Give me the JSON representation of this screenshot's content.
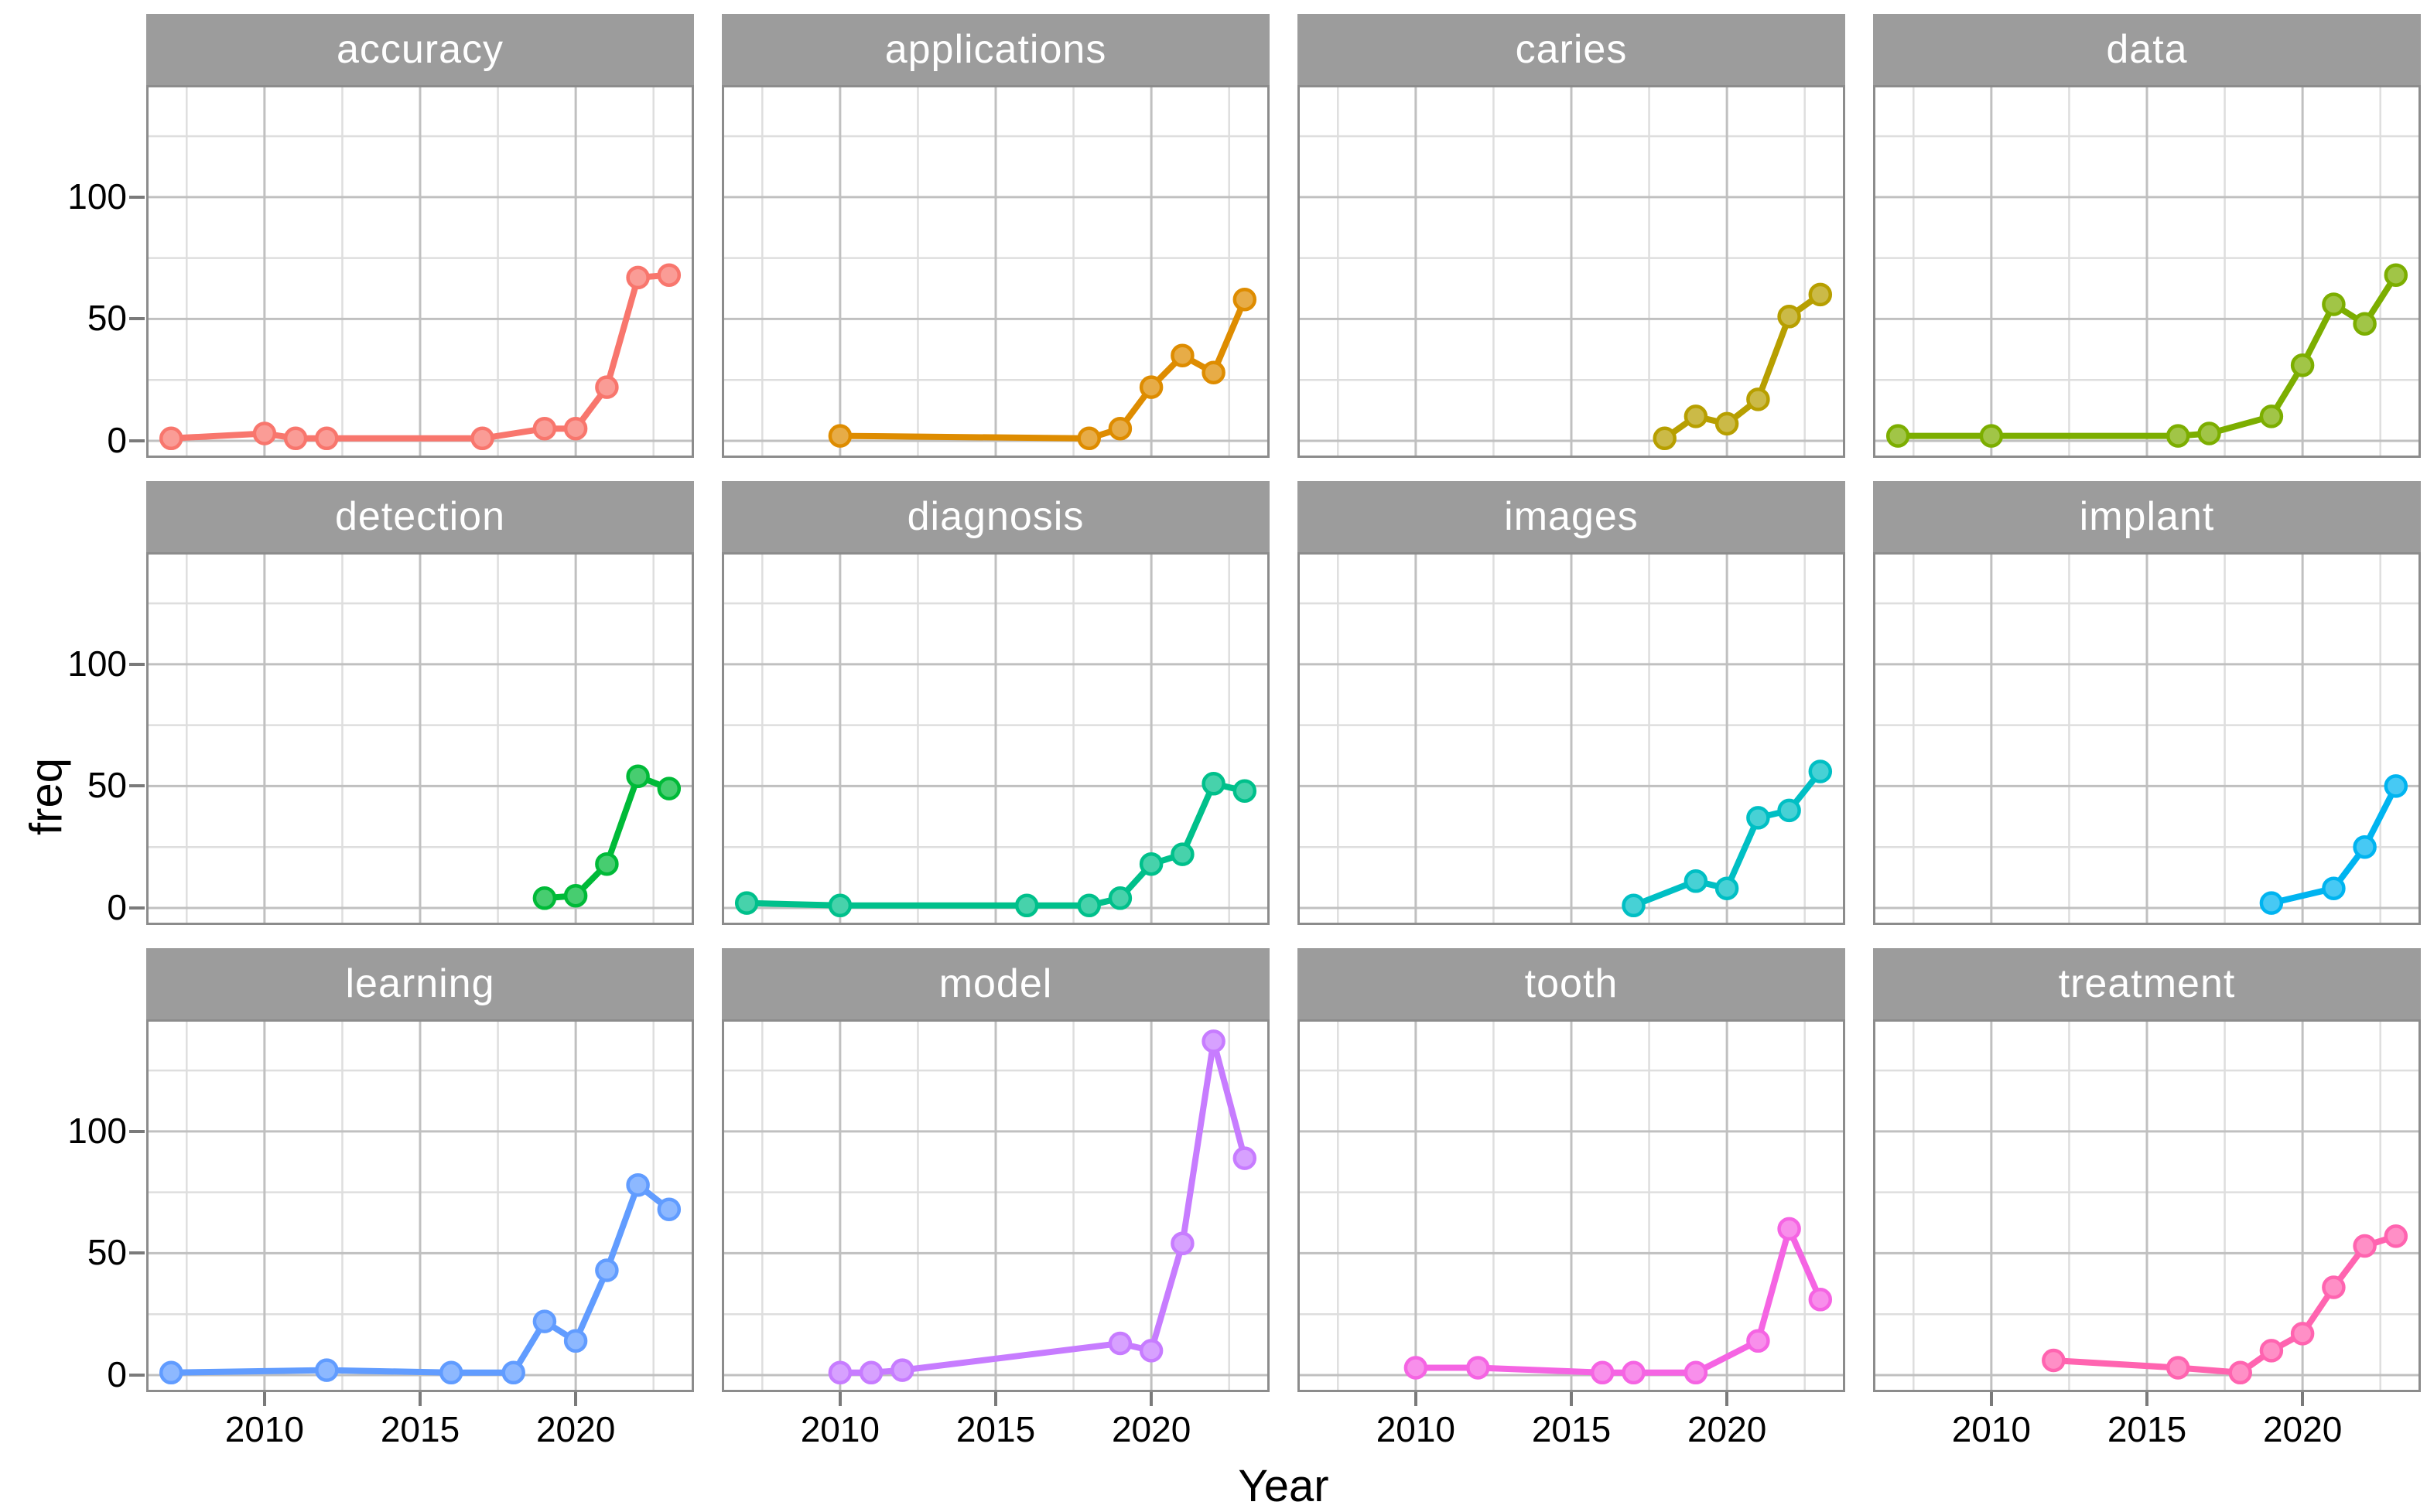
{
  "chart_data": {
    "type": "line",
    "title": "",
    "xlabel": "Year",
    "ylabel": "freq",
    "x_ticks": [
      2010,
      2015,
      2020
    ],
    "x_minor": [
      2007.5,
      2012.5,
      2017.5,
      2022.5
    ],
    "y_ticks": [
      0,
      50,
      100
    ],
    "y_minor": [
      25,
      75,
      125
    ],
    "xlim": [
      2006.2,
      2023.8
    ],
    "ylim": [
      -7,
      146
    ],
    "grid": true,
    "legend": "none",
    "strip_bg": "#9C9C9C",
    "strip_text_color": "#FFFFFF",
    "panel_bg": "#FFFFFF",
    "panel_border_color": "#8C8C8C",
    "grid_major_color": "#C0C0C0",
    "grid_minor_color": "#DEDEDE",
    "axis_text_color": "#000000",
    "facets": [
      {
        "label": "accuracy",
        "color": "#F8766D",
        "points": [
          [
            2007,
            1
          ],
          [
            2010,
            3
          ],
          [
            2011,
            1
          ],
          [
            2012,
            1
          ],
          [
            2017,
            1
          ],
          [
            2019,
            5
          ],
          [
            2020,
            5
          ],
          [
            2021,
            22
          ],
          [
            2022,
            67
          ],
          [
            2023,
            68
          ]
        ]
      },
      {
        "label": "applications",
        "color": "#DE8C00",
        "points": [
          [
            2010,
            2
          ],
          [
            2018,
            1
          ],
          [
            2019,
            5
          ],
          [
            2020,
            22
          ],
          [
            2021,
            35
          ],
          [
            2022,
            28
          ],
          [
            2023,
            58
          ]
        ]
      },
      {
        "label": "caries",
        "color": "#B79F00",
        "points": [
          [
            2018,
            1
          ],
          [
            2019,
            10
          ],
          [
            2020,
            7
          ],
          [
            2021,
            17
          ],
          [
            2022,
            51
          ],
          [
            2023,
            60
          ]
        ]
      },
      {
        "label": "data",
        "color": "#7CAE00",
        "points": [
          [
            2007,
            2
          ],
          [
            2010,
            2
          ],
          [
            2016,
            2
          ],
          [
            2017,
            3
          ],
          [
            2019,
            10
          ],
          [
            2020,
            31
          ],
          [
            2021,
            56
          ],
          [
            2022,
            48
          ],
          [
            2023,
            68
          ]
        ]
      },
      {
        "label": "detection",
        "color": "#00BA38",
        "points": [
          [
            2019,
            4
          ],
          [
            2020,
            5
          ],
          [
            2021,
            18
          ],
          [
            2022,
            54
          ],
          [
            2023,
            49
          ]
        ]
      },
      {
        "label": "diagnosis",
        "color": "#00C08B",
        "points": [
          [
            2007,
            2
          ],
          [
            2010,
            1
          ],
          [
            2016,
            1
          ],
          [
            2018,
            1
          ],
          [
            2019,
            4
          ],
          [
            2020,
            18
          ],
          [
            2021,
            22
          ],
          [
            2022,
            51
          ],
          [
            2023,
            48
          ]
        ]
      },
      {
        "label": "images",
        "color": "#00BFC4",
        "points": [
          [
            2017,
            1
          ],
          [
            2019,
            11
          ],
          [
            2020,
            8
          ],
          [
            2021,
            37
          ],
          [
            2022,
            40
          ],
          [
            2023,
            56
          ]
        ]
      },
      {
        "label": "implant",
        "color": "#00B4F0",
        "points": [
          [
            2019,
            2
          ],
          [
            2021,
            8
          ],
          [
            2022,
            25
          ],
          [
            2023,
            50
          ]
        ]
      },
      {
        "label": "learning",
        "color": "#619CFF",
        "points": [
          [
            2007,
            1
          ],
          [
            2012,
            2
          ],
          [
            2016,
            1
          ],
          [
            2018,
            1
          ],
          [
            2019,
            22
          ],
          [
            2020,
            14
          ],
          [
            2021,
            43
          ],
          [
            2022,
            78
          ],
          [
            2023,
            68
          ]
        ]
      },
      {
        "label": "model",
        "color": "#C77CFF",
        "points": [
          [
            2010,
            1
          ],
          [
            2011,
            1
          ],
          [
            2012,
            2
          ],
          [
            2019,
            13
          ],
          [
            2020,
            10
          ],
          [
            2021,
            54
          ],
          [
            2022,
            137
          ],
          [
            2023,
            89
          ]
        ]
      },
      {
        "label": "tooth",
        "color": "#F564E3",
        "points": [
          [
            2010,
            3
          ],
          [
            2012,
            3
          ],
          [
            2016,
            1
          ],
          [
            2017,
            1
          ],
          [
            2019,
            1
          ],
          [
            2021,
            14
          ],
          [
            2022,
            60
          ],
          [
            2023,
            31
          ]
        ]
      },
      {
        "label": "treatment",
        "color": "#FF64B0",
        "points": [
          [
            2012,
            6
          ],
          [
            2016,
            3
          ],
          [
            2018,
            1
          ],
          [
            2019,
            10
          ],
          [
            2020,
            17
          ],
          [
            2021,
            36
          ],
          [
            2022,
            53
          ],
          [
            2023,
            57
          ]
        ]
      }
    ]
  }
}
